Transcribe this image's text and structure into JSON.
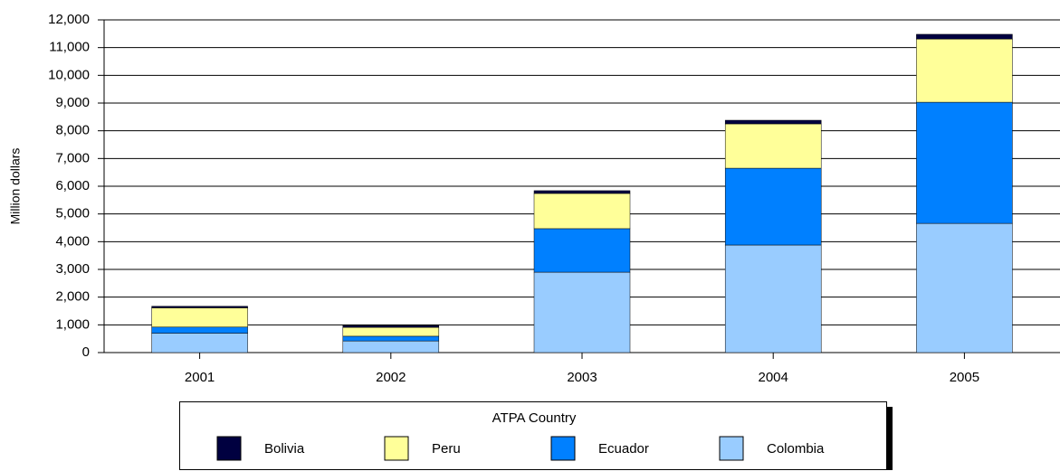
{
  "chart_data": {
    "type": "stacked_bar",
    "y_label": "Million dollars",
    "legend_title": "ATPA Country",
    "categories": [
      "2001",
      "2002",
      "2003",
      "2004",
      "2005"
    ],
    "series": [
      {
        "name": "Colombia",
        "color": "#99ccff",
        "values": [
          700,
          420,
          2900,
          3880,
          4660
        ]
      },
      {
        "name": "Ecuador",
        "color": "#0080ff",
        "values": [
          220,
          170,
          1570,
          2770,
          4370
        ]
      },
      {
        "name": "Peru",
        "color": "#ffff99",
        "values": [
          690,
          320,
          1270,
          1600,
          2280
        ]
      },
      {
        "name": "Bolivia",
        "color": "#000040",
        "values": [
          60,
          70,
          100,
          130,
          170
        ]
      }
    ],
    "ylim": [
      0,
      12000
    ],
    "yticks": [
      0,
      {
        "value": 1000,
        "label": "1,000"
      },
      {
        "value": 2000,
        "label": "2,000"
      },
      {
        "value": 3000,
        "label": "3,000"
      },
      {
        "value": 4000,
        "label": "4,000"
      },
      {
        "value": 5000,
        "label": "5,000"
      },
      {
        "value": 6000,
        "label": "6,000"
      },
      {
        "value": 7000,
        "label": "7,000"
      },
      {
        "value": 8000,
        "label": "8,000"
      },
      {
        "value": 9000,
        "label": "9,000"
      },
      {
        "value": 10000,
        "label": "10,000"
      },
      {
        "value": 11000,
        "label": "11,000"
      },
      {
        "value": 12000,
        "label": "12,000"
      }
    ],
    "grid": true
  }
}
